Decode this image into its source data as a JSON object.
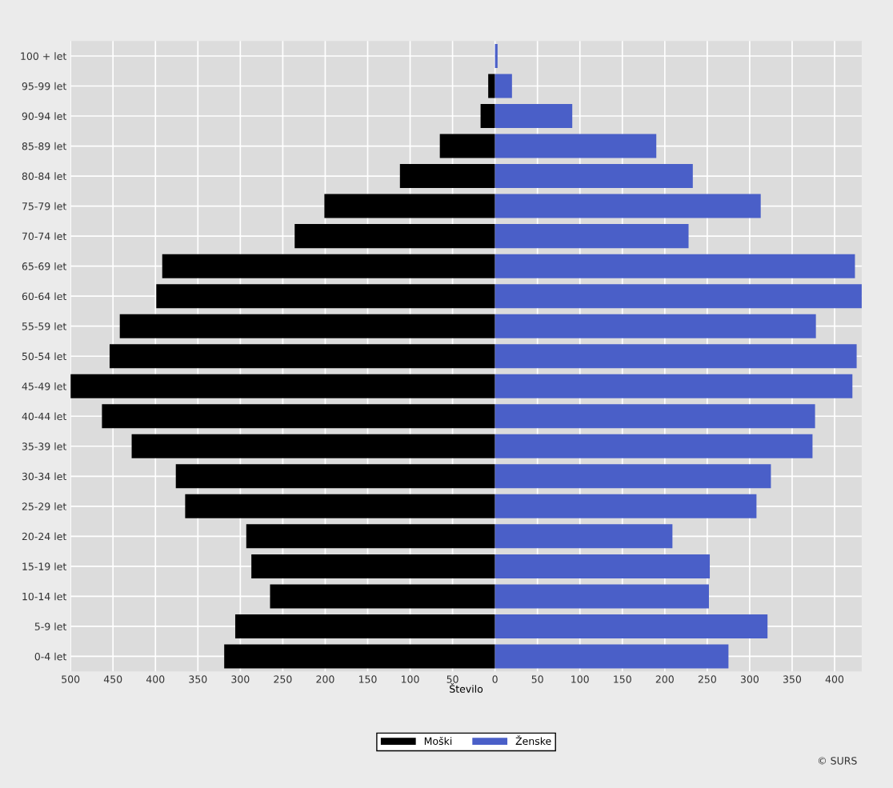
{
  "chart_data": {
    "type": "bar",
    "orientation": "horizontal",
    "stacked": true,
    "xlabel": "Število",
    "categories": [
      "100 + let",
      "95-99 let",
      "90-94 let",
      "85-89 let",
      "80-84 let",
      "75-79 let",
      "70-74 let",
      "65-69 let",
      "60-64 let",
      "55-59 let",
      "50-54 let",
      "45-49 let",
      "40-44 let",
      "35-39 let",
      "30-34 let",
      "25-29 let",
      "20-24 let",
      "15-19 let",
      "10-14 let",
      "5-9 let",
      "0-4 let"
    ],
    "series": [
      {
        "name": "Moški",
        "color": "#000000",
        "values": [
          null,
          -8,
          -17,
          -65,
          -112,
          -201,
          -236,
          -392,
          -399,
          -442,
          -454,
          -500,
          -463,
          -428,
          -376,
          -365,
          -293,
          -287,
          -265,
          -306,
          -319
        ]
      },
      {
        "name": "Ženske",
        "color": "#4a5fc8",
        "values": [
          3,
          20,
          91,
          190,
          233,
          313,
          228,
          424,
          432,
          378,
          426,
          421,
          377,
          374,
          325,
          308,
          209,
          253,
          252,
          321,
          275
        ]
      }
    ],
    "xlim": [
      -500,
      432
    ],
    "xticks": [
      {
        "value": -500,
        "label": "500"
      },
      {
        "value": -450,
        "label": "450"
      },
      {
        "value": -400,
        "label": "400"
      },
      {
        "value": -350,
        "label": "350"
      },
      {
        "value": -300,
        "label": "300"
      },
      {
        "value": -250,
        "label": "250"
      },
      {
        "value": -200,
        "label": "200"
      },
      {
        "value": -150,
        "label": "150"
      },
      {
        "value": -100,
        "label": "100"
      },
      {
        "value": -50,
        "label": "50"
      },
      0,
      50,
      100,
      150,
      200,
      250,
      300,
      350,
      400
    ],
    "grid": true,
    "legend": "bottom",
    "annotations": [
      "© SURS"
    ]
  }
}
